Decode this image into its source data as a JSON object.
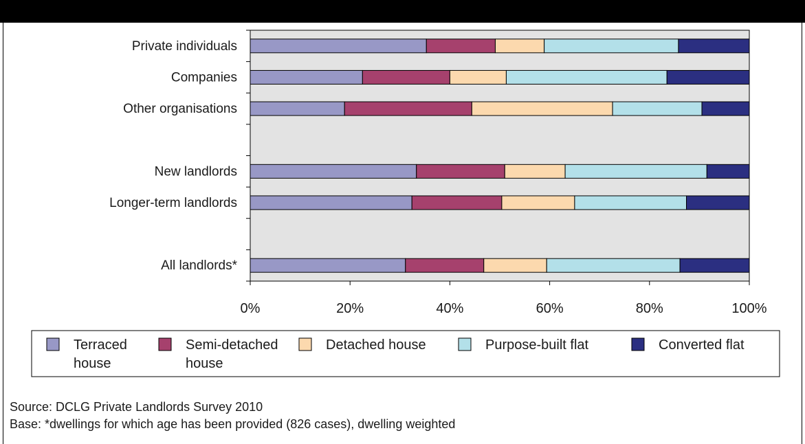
{
  "chart_data": {
    "type": "bar",
    "orientation": "horizontal",
    "stacked": true,
    "percent_stacked": true,
    "categories": [
      "Private individuals",
      "Companies",
      "Other organisations",
      "",
      "New landlords",
      "Longer-term landlords",
      "",
      "All landlords*"
    ],
    "series": [
      {
        "name": "Terraced house",
        "color": "#9898c6",
        "values": [
          35.3,
          22.5,
          18.9,
          null,
          33.3,
          32.4,
          null,
          31.1
        ]
      },
      {
        "name": "Semi-detached house",
        "color": "#a6416d",
        "values": [
          13.8,
          17.5,
          25.5,
          null,
          17.7,
          18.0,
          null,
          15.7
        ]
      },
      {
        "name": "Detached house",
        "color": "#fcd9ae",
        "values": [
          9.8,
          11.3,
          28.2,
          null,
          12.1,
          14.6,
          null,
          12.6
        ]
      },
      {
        "name": "Purpose-built flat",
        "color": "#b3e0e9",
        "values": [
          26.9,
          32.2,
          17.9,
          null,
          28.4,
          22.4,
          null,
          26.7
        ]
      },
      {
        "name": "Converted flat",
        "color": "#2b2f81",
        "values": [
          14.2,
          16.5,
          9.5,
          null,
          8.5,
          12.6,
          null,
          13.9
        ]
      }
    ],
    "xlim": [
      0,
      100
    ],
    "xticks": [
      "0%",
      "20%",
      "40%",
      "60%",
      "80%",
      "100%"
    ],
    "grid": false,
    "legend_position": "bottom"
  },
  "legend": {
    "items": [
      {
        "line1": "Terraced",
        "line2": "house"
      },
      {
        "line1": "Semi-detached",
        "line2": "house"
      },
      {
        "line1": "Detached house",
        "line2": ""
      },
      {
        "line1": "Purpose-built flat",
        "line2": ""
      },
      {
        "line1": "Converted flat",
        "line2": ""
      }
    ]
  },
  "footer": {
    "source": "Source: DCLG Private Landlords Survey 2010",
    "base": "Base: *dwellings for which age has been provided (826 cases), dwelling weighted"
  },
  "colors": {
    "plot_background": "#e3e3e3",
    "frame": "#000000"
  }
}
